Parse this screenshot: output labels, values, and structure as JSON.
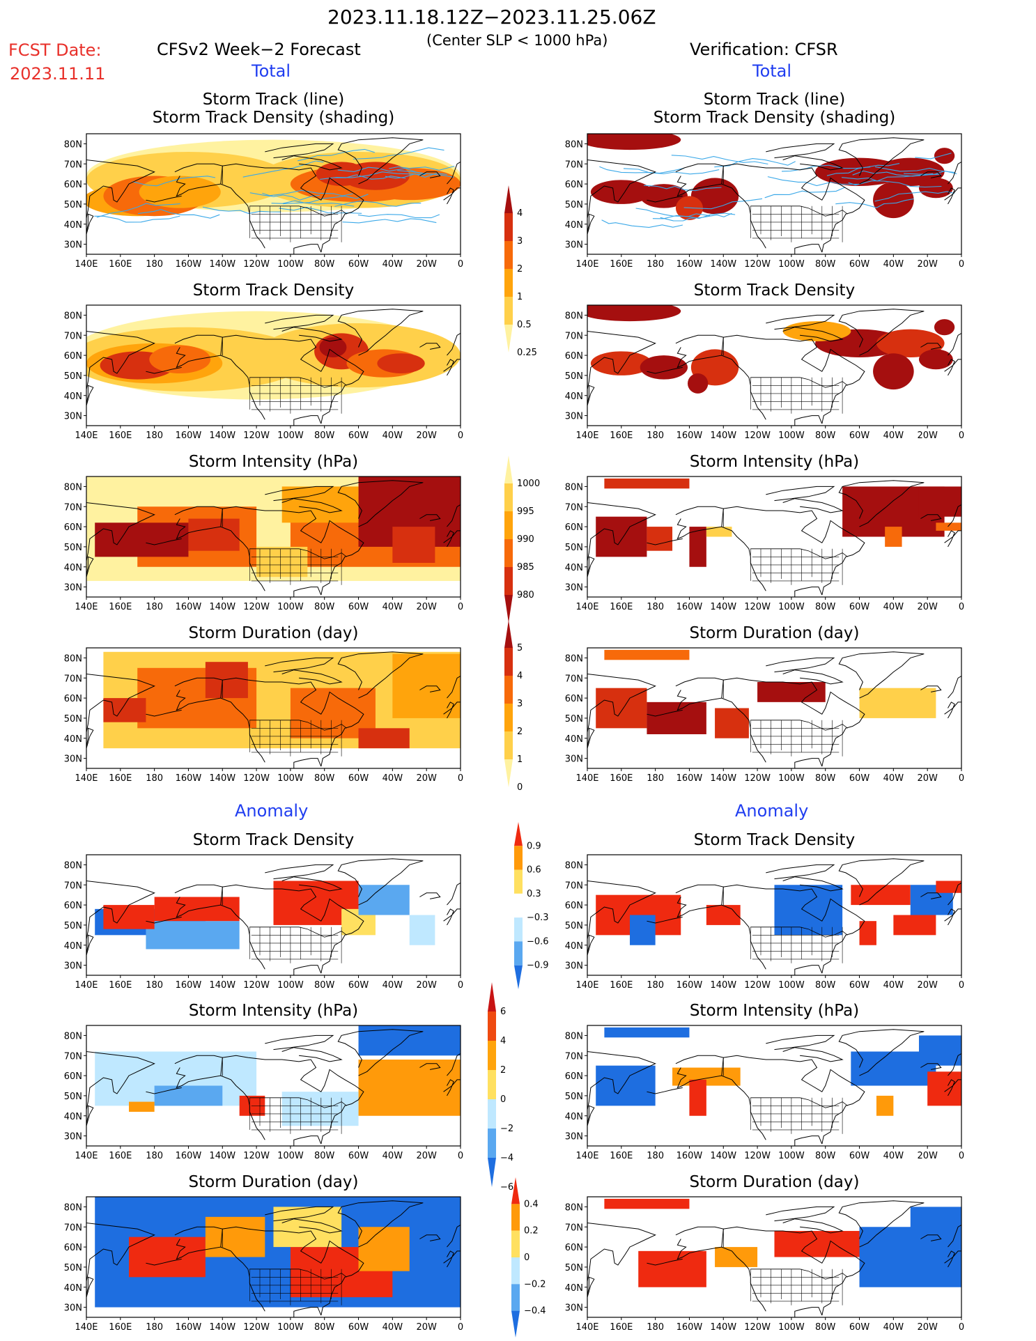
{
  "header": {
    "period": "2023.11.18.12Z−2023.11.25.06Z",
    "subtitle": "(Center SLP < 1000 hPa)",
    "fcst_label": "FCST Date:",
    "fcst_date": "2023.11.11",
    "left_title": "CFSv2 Week−2 Forecast",
    "right_title": "Verification: CFSR",
    "total_label": "Total",
    "anomaly_label": "Anomaly"
  },
  "axes": {
    "lat_ticks": [
      "80N",
      "70N",
      "60N",
      "50N",
      "40N",
      "30N"
    ],
    "lon_ticks": [
      "140E",
      "160E",
      "180",
      "160W",
      "140W",
      "120W",
      "100W",
      "80W",
      "60W",
      "40W",
      "20W",
      "0"
    ]
  },
  "panels": {
    "track_lines_title_1": "Storm Track (line)",
    "track_lines_title_2": "Storm Track Density (shading)",
    "density_title": "Storm Track Density",
    "intensity_title": "Storm Intensity (hPa)",
    "duration_title": "Storm Duration (day)"
  },
  "colorbars": {
    "density_total": {
      "labels": [
        "4",
        "3",
        "2",
        "1",
        "0.5",
        "0.25"
      ],
      "colors": [
        "#a50f0f",
        "#d7300f",
        "#f76a0a",
        "#ffa40c",
        "#ffd04a",
        "#fff2a0"
      ]
    },
    "intensity_total": {
      "labels": [
        "1000",
        "995",
        "990",
        "985",
        "980"
      ],
      "colors": [
        "#fff2a0",
        "#ffd04a",
        "#ffa40c",
        "#f76a0a",
        "#d7300f",
        "#a50f0f"
      ]
    },
    "duration_total": {
      "labels": [
        "5",
        "4",
        "3",
        "2",
        "1",
        "0"
      ],
      "colors": [
        "#a50f0f",
        "#d7300f",
        "#f76a0a",
        "#ffa40c",
        "#ffd04a",
        "#fff2a0"
      ]
    },
    "density_anom": {
      "labels": [
        "0.9",
        "0.6",
        "0.3",
        "−0.3",
        "−0.6",
        "−0.9"
      ],
      "colors": [
        "#ef2a10",
        "#ff9a0a",
        "#ffe060",
        "#ffffff",
        "#bfe8ff",
        "#5aa8f0",
        "#1e6ee0"
      ]
    },
    "intensity_anom": {
      "labels": [
        "6",
        "4",
        "2",
        "0",
        "−2",
        "−4",
        "−6"
      ],
      "colors": [
        "#c81414",
        "#ef4a10",
        "#ffa40c",
        "#ffe060",
        "#bfe8ff",
        "#5aa8f0",
        "#1e6ee0"
      ]
    },
    "duration_anom": {
      "labels": [
        "0.4",
        "0.2",
        "0",
        "−0.2",
        "−0.4"
      ],
      "colors": [
        "#ef2a10",
        "#ff9a0a",
        "#ffe060",
        "#bfe8ff",
        "#5aa8f0",
        "#1e6ee0"
      ]
    }
  }
}
